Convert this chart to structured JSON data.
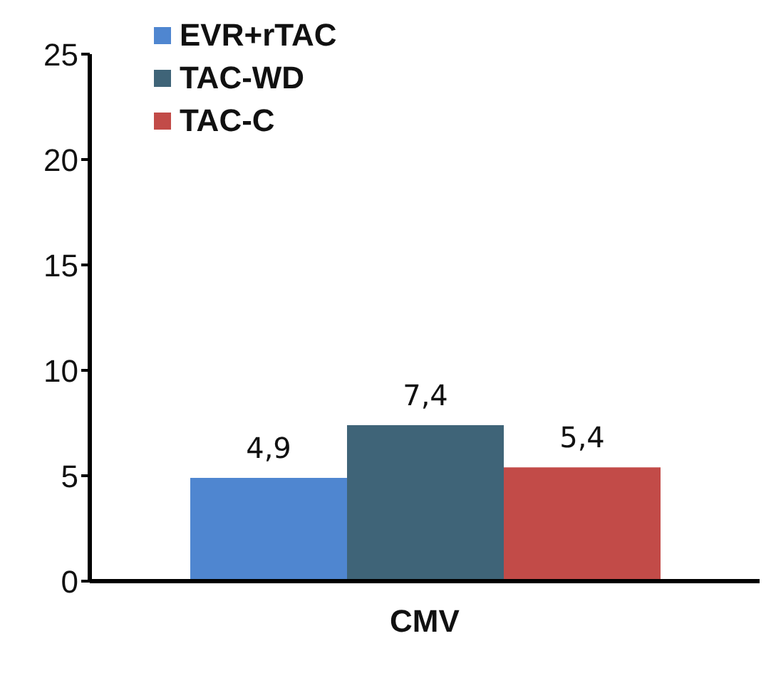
{
  "chart_data": {
    "type": "bar",
    "categories": [
      "CMV"
    ],
    "series": [
      {
        "name": "EVR+rTAC",
        "color": "#4f86d0",
        "values": [
          4.9
        ],
        "value_labels": [
          "4,9"
        ]
      },
      {
        "name": "TAC-WD",
        "color": "#3f6478",
        "values": [
          7.4
        ],
        "value_labels": [
          "7,4"
        ]
      },
      {
        "name": "TAC-C",
        "color": "#c24b48",
        "values": [
          5.4
        ],
        "value_labels": [
          "5,4"
        ]
      }
    ],
    "ylim": [
      0,
      25
    ],
    "yticks": [
      0,
      5,
      10,
      15,
      20,
      25
    ],
    "grid": false,
    "legend": "top left"
  }
}
